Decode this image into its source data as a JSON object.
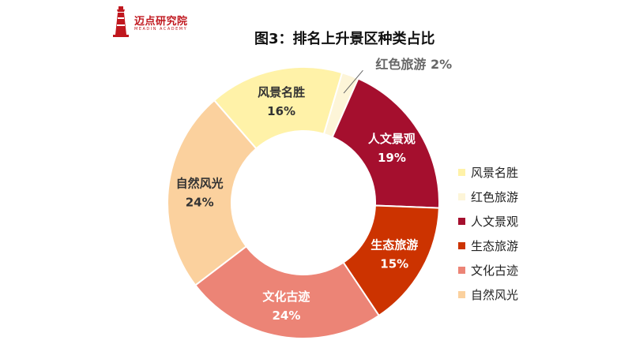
{
  "brand": {
    "name": "迈点研究院",
    "sub": "MEADIN ACADEMY"
  },
  "chart_data": {
    "type": "pie",
    "title": "图3：排名上升景区种类占比",
    "slices": [
      {
        "label": "风景名胜",
        "value": 16,
        "value_label": "16%",
        "color": "#FFF2A8"
      },
      {
        "label": "红色旅游",
        "value": 2,
        "value_label": "2%",
        "color": "#FDF5D8"
      },
      {
        "label": "人文景观",
        "value": 19,
        "value_label": "19%",
        "color": "#A50F2E"
      },
      {
        "label": "生态旅游",
        "value": 15,
        "value_label": "15%",
        "color": "#CC3300"
      },
      {
        "label": "文化古迹",
        "value": 24,
        "value_label": "24%",
        "color": "#EC8476"
      },
      {
        "label": "自然风光",
        "value": 24,
        "value_label": "24%",
        "color": "#FBD19E"
      }
    ],
    "legend_position": "right"
  }
}
